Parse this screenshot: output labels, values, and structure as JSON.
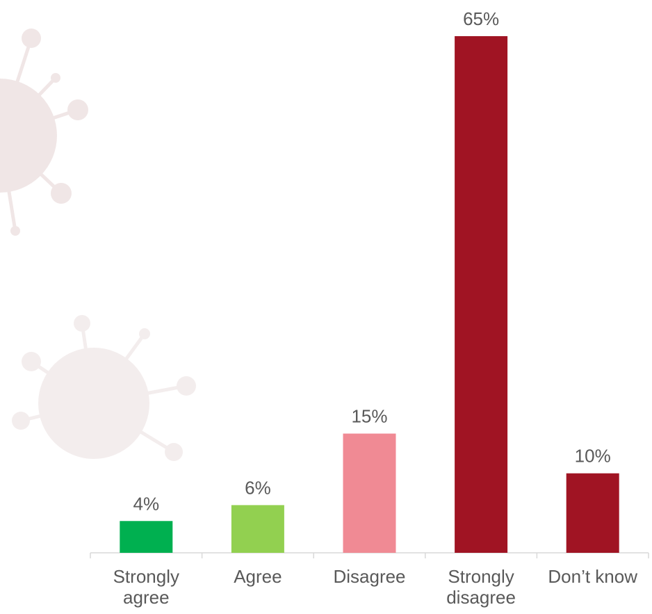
{
  "chart_data": {
    "type": "bar",
    "categories": [
      "Strongly agree",
      "Agree",
      "Disagree",
      "Strongly disagree",
      "Don’t know"
    ],
    "values": [
      4,
      6,
      15,
      65,
      10
    ],
    "value_labels": [
      "4%",
      "6%",
      "15%",
      "65%",
      "10%"
    ],
    "colors": [
      "#00b050",
      "#92d050",
      "#f08a94",
      "#a01423",
      "#a01423"
    ]
  }
}
